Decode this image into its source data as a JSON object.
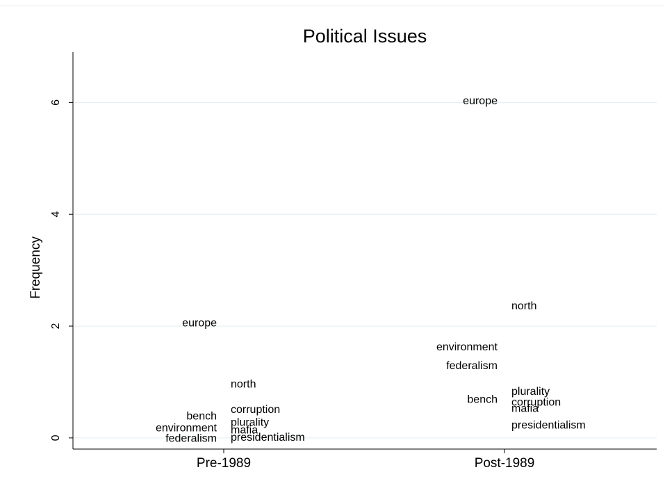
{
  "chart_data": {
    "type": "scatter",
    "title": "Political Issues",
    "xlabel": "",
    "ylabel": "Frequency",
    "categories": [
      "Pre-1989",
      "Post-1989"
    ],
    "yticks": [
      0,
      2,
      4,
      6
    ],
    "ylim": [
      -0.2,
      6.9
    ],
    "grid": true,
    "legend": "none",
    "points": [
      {
        "label": "europe",
        "x": "Pre-1989",
        "y": 2.05,
        "side": "left"
      },
      {
        "label": "north",
        "x": "Pre-1989",
        "y": 0.95,
        "side": "right"
      },
      {
        "label": "corruption",
        "x": "Pre-1989",
        "y": 0.5,
        "side": "right"
      },
      {
        "label": "bench",
        "x": "Pre-1989",
        "y": 0.38,
        "side": "left"
      },
      {
        "label": "plurality",
        "x": "Pre-1989",
        "y": 0.27,
        "side": "right"
      },
      {
        "label": "environment",
        "x": "Pre-1989",
        "y": 0.17,
        "side": "left"
      },
      {
        "label": "mafia",
        "x": "Pre-1989",
        "y": 0.13,
        "side": "right"
      },
      {
        "label": "federalism",
        "x": "Pre-1989",
        "y": -0.02,
        "side": "left"
      },
      {
        "label": "presidentialism",
        "x": "Pre-1989",
        "y": 0.0,
        "side": "right"
      },
      {
        "label": "europe",
        "x": "Post-1989",
        "y": 6.02,
        "side": "left"
      },
      {
        "label": "north",
        "x": "Post-1989",
        "y": 2.35,
        "side": "right"
      },
      {
        "label": "environment",
        "x": "Post-1989",
        "y": 1.62,
        "side": "left"
      },
      {
        "label": "federalism",
        "x": "Post-1989",
        "y": 1.28,
        "side": "left"
      },
      {
        "label": "plurality",
        "x": "Post-1989",
        "y": 0.82,
        "side": "right"
      },
      {
        "label": "bench",
        "x": "Post-1989",
        "y": 0.68,
        "side": "left"
      },
      {
        "label": "corruption",
        "x": "Post-1989",
        "y": 0.63,
        "side": "right"
      },
      {
        "label": "mafia",
        "x": "Post-1989",
        "y": 0.52,
        "side": "right"
      },
      {
        "label": "presidentialism",
        "x": "Post-1989",
        "y": 0.22,
        "side": "right"
      }
    ]
  },
  "colors": {
    "background": "#ffffff",
    "gridline": "#e3eef2",
    "axis": "#000000",
    "text": "#000000"
  }
}
